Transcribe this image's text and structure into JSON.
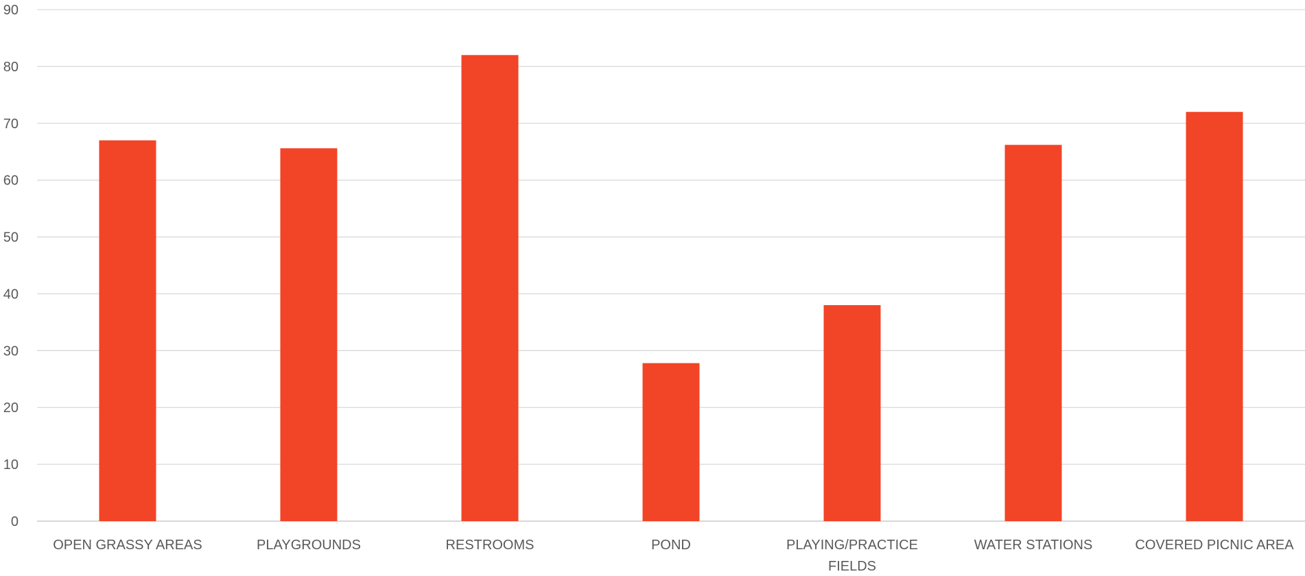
{
  "chart_data": {
    "type": "bar",
    "title": "",
    "xlabel": "",
    "ylabel": "",
    "categories": [
      "OPEN GRASSY AREAS",
      "PLAYGROUNDS",
      "RESTROOMS",
      "POND",
      "PLAYING/PRACTICE FIELDS",
      "WATER STATIONS",
      "COVERED PICNIC AREA"
    ],
    "category_label_lines": [
      [
        "OPEN GRASSY AREAS"
      ],
      [
        "PLAYGROUNDS"
      ],
      [
        "RESTROOMS"
      ],
      [
        "POND"
      ],
      [
        "PLAYING/PRACTICE",
        "FIELDS"
      ],
      [
        "WATER STATIONS"
      ],
      [
        "COVERED PICNIC AREA"
      ]
    ],
    "values": [
      67,
      65.6,
      82,
      27.8,
      38,
      66.2,
      72
    ],
    "ylim": [
      0,
      90
    ],
    "yticks": [
      "0",
      "10",
      "20",
      "30",
      "40",
      "50",
      "60",
      "70",
      "80",
      "90"
    ],
    "grid": true,
    "legend": "none",
    "bar_color": "#f24427"
  }
}
